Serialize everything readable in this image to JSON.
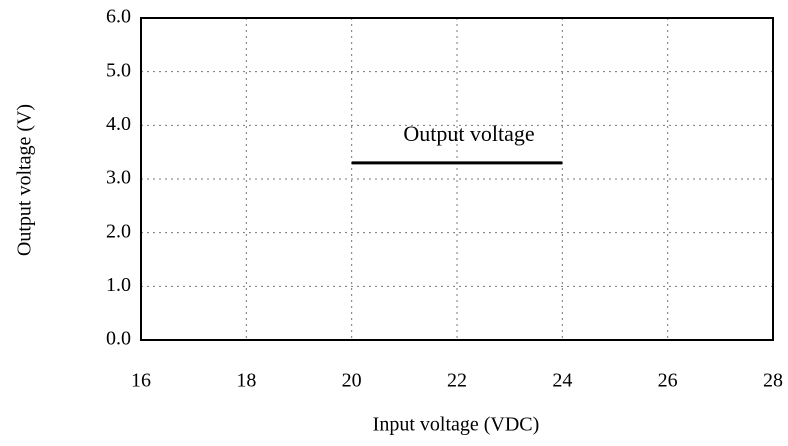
{
  "chart_data": {
    "type": "line",
    "x_label": "Input voltage (VDC)",
    "y_label": "Output voltage (V)",
    "x": [
      20,
      24
    ],
    "series": [
      {
        "name": "Output voltage",
        "color": "#000000",
        "values": [
          3.3,
          3.3
        ]
      }
    ],
    "xlim": [
      16,
      28
    ],
    "xticks": [
      16,
      18,
      20,
      22,
      24,
      26,
      28
    ],
    "ylim": [
      0,
      6
    ],
    "yticks": [
      {
        "value": 0,
        "label": "0.0"
      },
      {
        "value": 1,
        "label": "1.0"
      },
      {
        "value": 2,
        "label": "2.0"
      },
      {
        "value": 3,
        "label": "3.0"
      },
      {
        "value": 4,
        "label": "4.0"
      },
      {
        "value": 5,
        "label": "5.0"
      },
      {
        "value": 6,
        "label": "6.0"
      }
    ],
    "grid": true
  }
}
